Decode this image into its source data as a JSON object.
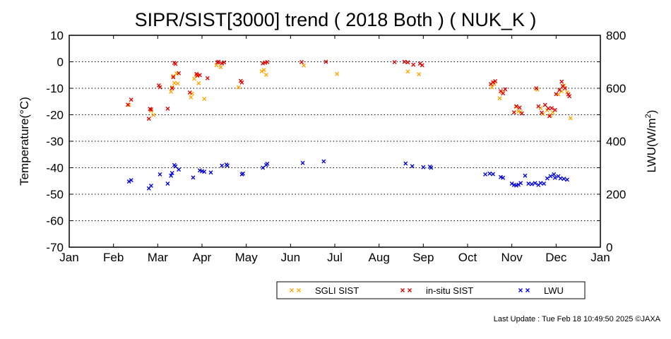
{
  "chart_data": {
    "type": "scatter",
    "title": "SIPR/SIST[3000] trend ( 2018 Both ) ( NUK_K )",
    "ylabel": "Temperature(°C)",
    "y2label_main": "LWU(W/m",
    "y2label_sup": "2",
    "y2label_end": ")",
    "ylim": [
      -70,
      10
    ],
    "y2lim": [
      0,
      800
    ],
    "y_ticks": [
      "10",
      "0",
      "-10",
      "-20",
      "-30",
      "-40",
      "-50",
      "-60",
      "-70"
    ],
    "y2_ticks": [
      "800",
      "600",
      "400",
      "200",
      "0"
    ],
    "x_ticks": [
      "Jan",
      "Feb",
      "Mar",
      "Apr",
      "May",
      "Jun",
      "Jul",
      "Aug",
      "Sep",
      "Oct",
      "Nov",
      "Dec",
      "Jan"
    ],
    "grid": "horizontal dotted",
    "legend_position": "bottom-right",
    "series": [
      {
        "name": "SGLI SIST",
        "color": "#ffa500",
        "axis": "left",
        "points": [
          [
            2.7,
            -16.3
          ],
          [
            3.7,
            -18.5
          ],
          [
            3.8,
            -20.1
          ],
          [
            4.6,
            -11.3
          ],
          [
            4.65,
            -9.6
          ],
          [
            4.7,
            -5.4
          ],
          [
            4.75,
            -8.0
          ],
          [
            4.85,
            -4.4
          ],
          [
            4.9,
            -8.2
          ],
          [
            5.5,
            -13.4
          ],
          [
            5.55,
            -12.0
          ],
          [
            5.65,
            -6.4
          ],
          [
            5.75,
            -5.0
          ],
          [
            5.85,
            -8.1
          ],
          [
            6.1,
            -14.0
          ],
          [
            6.65,
            -1.3
          ],
          [
            6.85,
            -2.0
          ],
          [
            7.65,
            -9.6
          ],
          [
            8.7,
            -3.6
          ],
          [
            8.8,
            -3.1
          ],
          [
            8.9,
            -4.9
          ],
          [
            10.6,
            -1.4
          ],
          [
            12.1,
            -4.6
          ],
          [
            15.3,
            -3.7
          ],
          [
            15.8,
            -4.7
          ],
          [
            19.1,
            -9.6
          ],
          [
            19.2,
            -8.4
          ],
          [
            19.45,
            -13.8
          ],
          [
            19.55,
            -11.5
          ],
          [
            20.2,
            -17.0
          ],
          [
            20.3,
            -18.7
          ],
          [
            20.4,
            -19.0
          ],
          [
            21.15,
            -10.5
          ],
          [
            21.3,
            -17.5
          ],
          [
            21.4,
            -19.7
          ],
          [
            21.6,
            -18.3
          ],
          [
            21.75,
            -20.2
          ],
          [
            21.85,
            -19.1
          ],
          [
            22.1,
            -12.3
          ],
          [
            22.25,
            -11.1
          ],
          [
            22.35,
            -9.0
          ],
          [
            22.5,
            -11.5
          ],
          [
            22.65,
            -21.3
          ]
        ]
      },
      {
        "name": "in-situ SIST",
        "color": "#dd0000",
        "axis": "left",
        "points": [
          [
            2.8,
            -14.3
          ],
          [
            2.65,
            -16.2
          ],
          [
            3.6,
            -21.5
          ],
          [
            3.65,
            -17.8
          ],
          [
            3.7,
            -18.0
          ],
          [
            4.05,
            -8.9
          ],
          [
            4.1,
            -9.6
          ],
          [
            4.45,
            -17.7
          ],
          [
            4.65,
            -10.0
          ],
          [
            4.7,
            -5.8
          ],
          [
            4.75,
            -0.4
          ],
          [
            4.8,
            -0.8
          ],
          [
            4.95,
            -4.3
          ],
          [
            5.45,
            -11.6
          ],
          [
            5.75,
            -4.6
          ],
          [
            5.8,
            -5.2
          ],
          [
            5.9,
            -5.0
          ],
          [
            6.25,
            -6.2
          ],
          [
            6.7,
            -0.2
          ],
          [
            6.75,
            0.0
          ],
          [
            6.9,
            -0.6
          ],
          [
            7.0,
            -0.2
          ],
          [
            7.75,
            -7.2
          ],
          [
            7.8,
            -7.8
          ],
          [
            8.75,
            -0.6
          ],
          [
            8.85,
            -0.3
          ],
          [
            8.95,
            -0.1
          ],
          [
            10.5,
            -0.1
          ],
          [
            11.6,
            0.0
          ],
          [
            14.7,
            -0.1
          ],
          [
            15.15,
            0.0
          ],
          [
            15.3,
            -0.2
          ],
          [
            15.55,
            -1.1
          ],
          [
            15.85,
            -0.7
          ],
          [
            15.95,
            -1.3
          ],
          [
            19.05,
            -8.4
          ],
          [
            19.15,
            -7.7
          ],
          [
            19.25,
            -7.3
          ],
          [
            19.5,
            -11.1
          ],
          [
            19.6,
            -11.9
          ],
          [
            19.7,
            -10.4
          ],
          [
            20.1,
            -19.1
          ],
          [
            20.2,
            -16.8
          ],
          [
            20.35,
            -17.3
          ],
          [
            20.45,
            -19.5
          ],
          [
            21.1,
            -10.0
          ],
          [
            21.2,
            -16.8
          ],
          [
            21.35,
            -19.2
          ],
          [
            21.5,
            -16.3
          ],
          [
            21.65,
            -17.6
          ],
          [
            21.7,
            -20.5
          ],
          [
            21.8,
            -17.5
          ],
          [
            21.95,
            -18.2
          ],
          [
            22.0,
            -12.2
          ],
          [
            22.15,
            -10.6
          ],
          [
            22.25,
            -7.5
          ],
          [
            22.3,
            -9.2
          ],
          [
            22.4,
            -10.0
          ],
          [
            22.55,
            -12.3
          ],
          [
            22.6,
            -13.0
          ]
        ]
      },
      {
        "name": "LWU",
        "color": "#0000dd",
        "axis": "right",
        "points": [
          [
            2.7,
            248
          ],
          [
            2.8,
            253
          ],
          [
            3.6,
            222
          ],
          [
            3.7,
            232
          ],
          [
            4.1,
            275
          ],
          [
            4.45,
            240
          ],
          [
            4.6,
            270
          ],
          [
            4.65,
            280
          ],
          [
            4.75,
            310
          ],
          [
            4.8,
            305
          ],
          [
            4.95,
            293
          ],
          [
            5.6,
            263
          ],
          [
            5.9,
            290
          ],
          [
            6.0,
            287
          ],
          [
            6.1,
            285
          ],
          [
            6.4,
            282
          ],
          [
            6.9,
            308
          ],
          [
            7.1,
            312
          ],
          [
            7.15,
            308
          ],
          [
            7.8,
            275
          ],
          [
            7.85,
            278
          ],
          [
            8.75,
            300
          ],
          [
            8.9,
            310
          ],
          [
            8.95,
            315
          ],
          [
            10.55,
            318
          ],
          [
            11.5,
            324
          ],
          [
            15.2,
            316
          ],
          [
            15.5,
            306
          ],
          [
            16.0,
            302
          ],
          [
            16.3,
            304
          ],
          [
            16.35,
            300
          ],
          [
            18.8,
            275
          ],
          [
            19.0,
            278
          ],
          [
            19.15,
            276
          ],
          [
            19.5,
            265
          ],
          [
            19.6,
            262
          ],
          [
            20.0,
            240
          ],
          [
            20.1,
            235
          ],
          [
            20.2,
            233
          ],
          [
            20.3,
            236
          ],
          [
            20.4,
            242
          ],
          [
            20.6,
            270
          ],
          [
            20.75,
            240
          ],
          [
            20.9,
            238
          ],
          [
            21.05,
            242
          ],
          [
            21.2,
            235
          ],
          [
            21.3,
            242
          ],
          [
            21.45,
            240
          ],
          [
            21.6,
            260
          ],
          [
            21.75,
            268
          ],
          [
            21.9,
            275
          ],
          [
            21.95,
            262
          ],
          [
            22.1,
            268
          ],
          [
            22.2,
            260
          ],
          [
            22.35,
            258
          ],
          [
            22.5,
            255
          ]
        ]
      }
    ]
  },
  "footer": {
    "last_update": "Last Update : Tue Feb 18 10:49:50 2025  ©JAXA"
  }
}
